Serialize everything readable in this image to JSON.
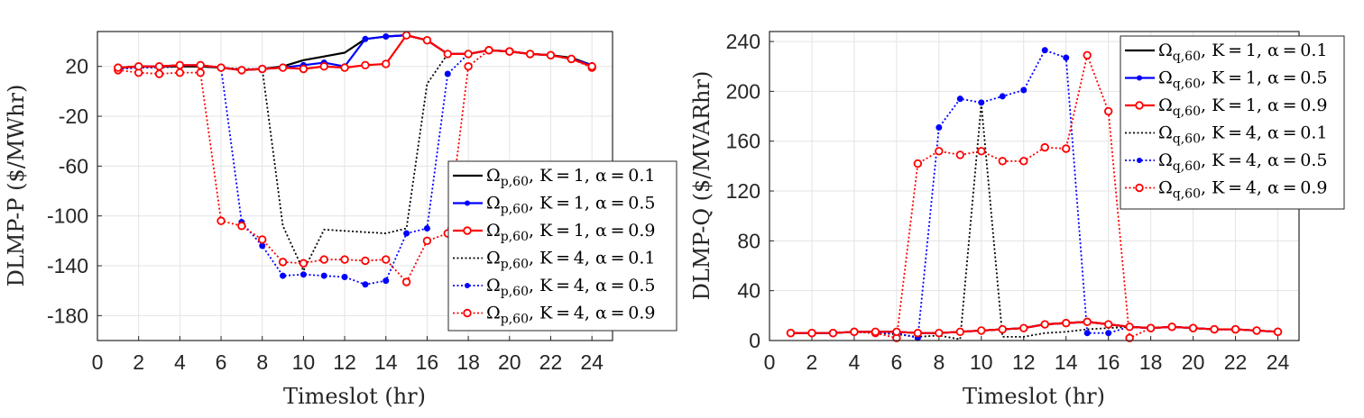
{
  "chart_data": [
    {
      "type": "line",
      "ylabel": "DLMP-P ($/MWhr)",
      "xlabel": "Timeslot (hr)",
      "xlim": [
        0,
        25
      ],
      "ylim": [
        -200,
        48
      ],
      "xticks": [
        0,
        2,
        4,
        6,
        8,
        10,
        12,
        14,
        16,
        18,
        20,
        22,
        24
      ],
      "yticks": [
        20,
        -20,
        -60,
        -100,
        -140,
        -180
      ],
      "grid": true,
      "legend_position": "right",
      "x": [
        1,
        2,
        3,
        4,
        5,
        6,
        7,
        8,
        9,
        10,
        11,
        12,
        13,
        14,
        15,
        16,
        17,
        18,
        19,
        20,
        21,
        22,
        23,
        24
      ],
      "series": [
        {
          "name": "Ω_{p,60}, K=1, α=0.1",
          "color": "#000000",
          "style": "solid",
          "marker": "none",
          "values": [
            19,
            20,
            20,
            20,
            20,
            19,
            17,
            18,
            20,
            25,
            28,
            31,
            42,
            44,
            45,
            41,
            30,
            30,
            33,
            32,
            30,
            29,
            27,
            21
          ]
        },
        {
          "name": "Ω_{p,60}, K=1, α=0.5",
          "color": "#0000ff",
          "style": "solid",
          "marker": "dot",
          "values": [
            19,
            20,
            20,
            21,
            21,
            19,
            17,
            18,
            19,
            21,
            23,
            20,
            42,
            44,
            45,
            41,
            30,
            30,
            33,
            32,
            30,
            29,
            26,
            21
          ]
        },
        {
          "name": "Ω_{p,60}, K=1, α=0.9",
          "color": "#ff0000",
          "style": "solid",
          "marker": "circle",
          "values": [
            19,
            20,
            20,
            21,
            21,
            19,
            17,
            18,
            19,
            18,
            20,
            19,
            21,
            22,
            45,
            41,
            30,
            30,
            33,
            32,
            30,
            29,
            26,
            20
          ]
        },
        {
          "name": "Ω_{p,60}, K=4, α=0.1",
          "color": "#000000",
          "style": "dotted",
          "marker": "none",
          "values": [
            18,
            19,
            19,
            20,
            20,
            19,
            18,
            18,
            -108,
            -144,
            -111,
            -112,
            -113,
            -114,
            -110,
            6,
            30,
            30,
            33,
            32,
            30,
            29,
            26,
            21
          ]
        },
        {
          "name": "Ω_{p,60}, K=4, α=0.5",
          "color": "#0000ff",
          "style": "dotted",
          "marker": "dot",
          "values": [
            18,
            19,
            19,
            20,
            20,
            19,
            -105,
            -124,
            -148,
            -147,
            -148,
            -149,
            -155,
            -152,
            -114,
            -110,
            14,
            30,
            33,
            32,
            30,
            29,
            26,
            20
          ]
        },
        {
          "name": "Ω_{p,60}, K=4, α=0.9",
          "color": "#ff0000",
          "style": "dotted",
          "marker": "circle",
          "values": [
            17,
            15,
            14,
            15,
            15,
            -104,
            -108,
            -119,
            -137,
            -138,
            -135,
            -135,
            -136,
            -135,
            -153,
            -120,
            -114,
            20,
            33,
            32,
            30,
            29,
            26,
            19
          ]
        }
      ]
    },
    {
      "type": "line",
      "ylabel": "DLMP-Q ($/MVARhr)",
      "xlabel": "Timeslot (hr)",
      "xlim": [
        0,
        25
      ],
      "ylim": [
        0,
        248
      ],
      "xticks": [
        0,
        2,
        4,
        6,
        8,
        10,
        12,
        14,
        16,
        18,
        20,
        22,
        24
      ],
      "yticks": [
        0,
        40,
        80,
        120,
        160,
        200,
        240
      ],
      "grid": true,
      "legend_position": "top-right",
      "x": [
        1,
        2,
        3,
        4,
        5,
        6,
        7,
        8,
        9,
        10,
        11,
        12,
        13,
        14,
        15,
        16,
        17,
        18,
        19,
        20,
        21,
        22,
        23,
        24
      ],
      "series": [
        {
          "name": "Ω_{q,60}, K=1, α=0.1",
          "color": "#000000",
          "style": "solid",
          "marker": "none",
          "values": [
            6,
            6,
            6,
            7,
            7,
            7,
            6,
            6,
            7,
            8,
            9,
            10,
            13,
            14,
            15,
            13,
            11,
            10,
            11,
            10,
            9,
            9,
            8,
            7
          ]
        },
        {
          "name": "Ω_{q,60}, K=1, α=0.5",
          "color": "#0000ff",
          "style": "solid",
          "marker": "dot",
          "values": [
            6,
            6,
            6,
            7,
            7,
            7,
            6,
            6,
            7,
            8,
            9,
            10,
            13,
            14,
            15,
            13,
            11,
            10,
            11,
            10,
            9,
            9,
            8,
            7
          ]
        },
        {
          "name": "Ω_{q,60}, K=1, α=0.9",
          "color": "#ff0000",
          "style": "solid",
          "marker": "circle",
          "values": [
            6,
            6,
            6,
            7,
            7,
            7,
            6,
            6,
            7,
            8,
            9,
            10,
            13,
            14,
            15,
            13,
            11,
            10,
            11,
            10,
            9,
            9,
            8,
            7
          ]
        },
        {
          "name": "Ω_{q,60}, K=4, α=0.1",
          "color": "#000000",
          "style": "dotted",
          "marker": "none",
          "values": [
            6,
            6,
            6,
            7,
            6,
            5,
            3,
            4,
            1,
            190,
            3,
            3,
            6,
            7,
            9,
            10,
            11,
            10,
            11,
            10,
            9,
            9,
            8,
            7
          ]
        },
        {
          "name": "Ω_{q,60}, K=4, α=0.5",
          "color": "#0000ff",
          "style": "dotted",
          "marker": "dot",
          "values": [
            6,
            6,
            6,
            7,
            6,
            6,
            2,
            171,
            194,
            191,
            196,
            201,
            233,
            227,
            6,
            6,
            11,
            10,
            11,
            10,
            9,
            9,
            8,
            7
          ]
        },
        {
          "name": "Ω_{q,60}, K=4, α=0.9",
          "color": "#ff0000",
          "style": "dotted",
          "marker": "circle",
          "values": [
            6,
            6,
            6,
            7,
            6,
            2,
            142,
            152,
            149,
            152,
            144,
            144,
            155,
            154,
            229,
            184,
            2,
            10,
            11,
            10,
            9,
            9,
            8,
            7
          ]
        }
      ]
    }
  ]
}
